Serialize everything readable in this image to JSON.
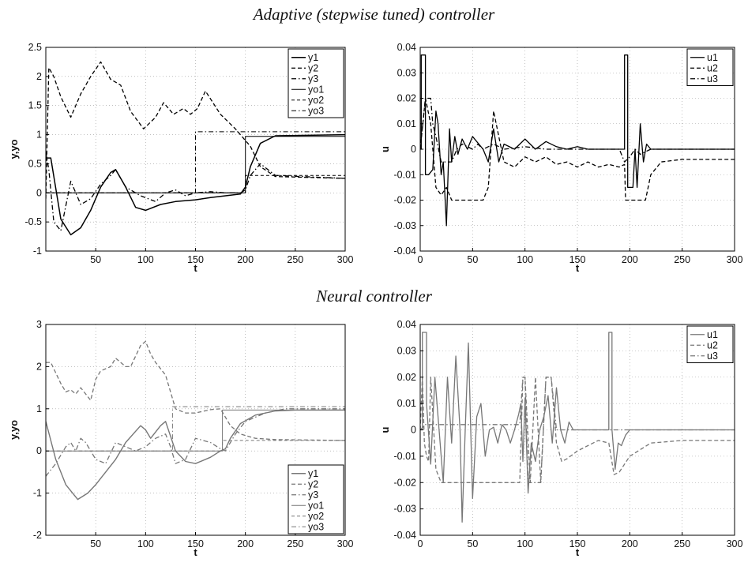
{
  "sections": [
    {
      "title": "Adaptive (stepwise tuned) controller"
    },
    {
      "title": "Neural controller"
    }
  ],
  "chart_data": [
    {
      "type": "line",
      "xlabel": "t",
      "ylabel": "y,yo",
      "xlim": [
        0,
        300
      ],
      "ylim": [
        -1,
        2.5
      ],
      "xticks": [
        50,
        100,
        150,
        200,
        250,
        300
      ],
      "yticks": [
        -1,
        -0.5,
        0,
        0.5,
        1,
        1.5,
        2,
        2.5
      ],
      "grid": true,
      "legend": "top-right",
      "color": "#000000",
      "series": [
        {
          "name": "y1",
          "dash": "",
          "width": 1.5,
          "x": [
            0,
            5,
            15,
            25,
            35,
            45,
            55,
            65,
            70,
            80,
            90,
            100,
            115,
            130,
            150,
            165,
            180,
            195,
            200,
            205,
            215,
            230,
            300
          ],
          "y": [
            0.6,
            0.6,
            -0.45,
            -0.72,
            -0.6,
            -0.3,
            0.1,
            0.35,
            0.4,
            0.1,
            -0.25,
            -0.3,
            -0.2,
            -0.15,
            -0.12,
            -0.08,
            -0.05,
            -0.02,
            0.1,
            0.45,
            0.85,
            0.98,
            1.0
          ]
        },
        {
          "name": "y2",
          "dash": "5,3",
          "width": 1.3,
          "x": [
            0,
            3,
            8,
            15,
            25,
            35,
            45,
            55,
            65,
            75,
            85,
            98,
            110,
            118,
            128,
            138,
            145,
            152,
            160,
            175,
            190,
            205,
            215,
            230,
            300
          ],
          "y": [
            -0.1,
            2.15,
            2.0,
            1.65,
            1.3,
            1.7,
            2.0,
            2.25,
            1.95,
            1.85,
            1.4,
            1.1,
            1.3,
            1.55,
            1.35,
            1.45,
            1.35,
            1.45,
            1.75,
            1.35,
            1.1,
            0.8,
            0.45,
            0.28,
            0.25
          ]
        },
        {
          "name": "y3",
          "dash": "6,3,1.5,3",
          "width": 1.3,
          "x": [
            0,
            3,
            8,
            15,
            25,
            35,
            45,
            55,
            65,
            70,
            80,
            95,
            110,
            120,
            130,
            140,
            150,
            165,
            180,
            195,
            200,
            205,
            215,
            230,
            300
          ],
          "y": [
            0.7,
            0.4,
            -0.5,
            -0.65,
            0.2,
            -0.2,
            -0.1,
            0.15,
            0.3,
            0.4,
            0.1,
            -0.05,
            -0.15,
            0.0,
            0.05,
            -0.05,
            0.0,
            0.02,
            0.0,
            0.0,
            0.05,
            0.3,
            0.5,
            0.3,
            0.25
          ]
        },
        {
          "name": "yo1",
          "dash": "",
          "width": 1.0,
          "x": [
            0,
            200,
            200,
            300
          ],
          "y": [
            0,
            0,
            0.97,
            0.97
          ]
        },
        {
          "name": "yo2",
          "dash": "4,3",
          "width": 1.0,
          "x": [
            0,
            200,
            200,
            300
          ],
          "y": [
            0,
            0,
            0.3,
            0.3
          ]
        },
        {
          "name": "yo3",
          "dash": "6,3,1.5,3",
          "width": 1.0,
          "x": [
            0,
            150,
            150,
            300
          ],
          "y": [
            0,
            0,
            1.05,
            1.05
          ]
        }
      ]
    },
    {
      "type": "line",
      "xlabel": "t",
      "ylabel": "u",
      "xlim": [
        0,
        300
      ],
      "ylim": [
        -0.04,
        0.04
      ],
      "xticks": [
        0,
        50,
        100,
        150,
        200,
        250,
        300
      ],
      "yticks": [
        -0.04,
        -0.03,
        -0.02,
        -0.01,
        0,
        0.01,
        0.02,
        0.03,
        0.04
      ],
      "grid": true,
      "legend": "top-right",
      "color": "#000000",
      "series": [
        {
          "name": "u1",
          "dash": "",
          "width": 1.3,
          "x": [
            0,
            1,
            1,
            5,
            5,
            8,
            12,
            15,
            17,
            20,
            22,
            25,
            28,
            30,
            33,
            36,
            40,
            45,
            50,
            60,
            65,
            70,
            75,
            80,
            90,
            100,
            110,
            120,
            130,
            140,
            150,
            160,
            170,
            180,
            190,
            195,
            195,
            198,
            198,
            203,
            205,
            207,
            210,
            213,
            216,
            220,
            230,
            250,
            300
          ],
          "y": [
            0,
            0,
            0.037,
            0.037,
            -0.01,
            -0.01,
            -0.008,
            0.015,
            0.01,
            -0.01,
            -0.005,
            -0.03,
            0.008,
            -0.005,
            0.005,
            -0.002,
            0.004,
            0.0,
            0.005,
            0.0,
            -0.005,
            0.008,
            -0.005,
            0.002,
            0.0,
            0.004,
            0.0,
            0.003,
            0.001,
            0.0,
            0.001,
            0.0,
            0.0,
            0.0,
            0.0,
            0.0,
            0.037,
            0.037,
            -0.015,
            -0.015,
            0.0,
            -0.015,
            0.01,
            -0.005,
            0.002,
            0.0,
            0.0,
            0.0,
            0.0
          ]
        },
        {
          "name": "u2",
          "dash": "5,3",
          "width": 1.3,
          "x": [
            0,
            5,
            10,
            15,
            20,
            25,
            30,
            40,
            45,
            50,
            60,
            65,
            70,
            75,
            80,
            90,
            100,
            110,
            120,
            130,
            140,
            150,
            160,
            170,
            180,
            190,
            195,
            196,
            200,
            205,
            210,
            215,
            220,
            230,
            250,
            300
          ],
          "y": [
            0,
            0.02,
            0.01,
            -0.015,
            -0.018,
            -0.015,
            -0.02,
            -0.02,
            -0.02,
            -0.02,
            -0.02,
            -0.015,
            0.015,
            0.005,
            -0.005,
            -0.007,
            -0.003,
            -0.005,
            -0.003,
            -0.006,
            -0.005,
            -0.007,
            -0.005,
            -0.007,
            -0.006,
            -0.007,
            -0.006,
            -0.02,
            -0.02,
            -0.02,
            -0.02,
            -0.02,
            -0.01,
            -0.005,
            -0.004,
            -0.004
          ]
        },
        {
          "name": "u3",
          "dash": "6,3,1.5,3",
          "width": 1.3,
          "x": [
            0,
            5,
            10,
            12,
            15,
            20,
            30,
            35,
            40,
            50,
            55,
            60,
            70,
            80,
            100,
            120,
            150,
            170,
            190,
            195,
            200,
            205,
            210,
            220,
            300
          ],
          "y": [
            0,
            0.02,
            0.02,
            0.01,
            0.005,
            -0.005,
            -0.005,
            0.0,
            0.002,
            0.0,
            0.002,
            0.0,
            0.002,
            0.0,
            0.001,
            0.0,
            0.0,
            0.0,
            0.0,
            -0.005,
            -0.003,
            0.0,
            -0.002,
            0.0,
            0.0
          ]
        }
      ]
    },
    {
      "type": "line",
      "xlabel": "t",
      "ylabel": "y,yo",
      "xlim": [
        0,
        300
      ],
      "ylim": [
        -2,
        3
      ],
      "xticks": [
        50,
        100,
        150,
        200,
        250,
        300
      ],
      "yticks": [
        -2,
        -1,
        0,
        1,
        2,
        3
      ],
      "grid": true,
      "legend": "bottom-right",
      "color": "#777777",
      "series": [
        {
          "name": "y1",
          "dash": "",
          "width": 1.4,
          "x": [
            0,
            10,
            20,
            32,
            42,
            50,
            60,
            70,
            80,
            95,
            100,
            105,
            115,
            120,
            130,
            140,
            150,
            165,
            175,
            180,
            185,
            195,
            210,
            230,
            250,
            300
          ],
          "y": [
            0.7,
            -0.2,
            -0.8,
            -1.15,
            -1.0,
            -0.8,
            -0.5,
            -0.2,
            0.2,
            0.6,
            0.5,
            0.3,
            0.6,
            0.7,
            0.0,
            -0.25,
            -0.3,
            -0.15,
            0.0,
            0.05,
            0.3,
            0.65,
            0.85,
            0.95,
            0.97,
            0.97
          ]
        },
        {
          "name": "y2",
          "dash": "5,3",
          "width": 1.3,
          "x": [
            0,
            5,
            15,
            20,
            25,
            30,
            35,
            45,
            50,
            55,
            65,
            70,
            80,
            85,
            95,
            100,
            105,
            110,
            120,
            125,
            130,
            140,
            150,
            165,
            175,
            180,
            185,
            195,
            210,
            230,
            300
          ],
          "y": [
            2.1,
            2.1,
            1.6,
            1.4,
            1.45,
            1.35,
            1.5,
            1.2,
            1.7,
            1.9,
            2.0,
            2.2,
            2.0,
            2.0,
            2.5,
            2.6,
            2.3,
            2.1,
            1.8,
            1.4,
            1.0,
            0.9,
            0.9,
            0.98,
            1.0,
            0.8,
            0.6,
            0.4,
            0.3,
            0.27,
            0.25
          ]
        },
        {
          "name": "y3",
          "dash": "6,3,1.5,3",
          "width": 1.3,
          "x": [
            0,
            10,
            20,
            25,
            30,
            35,
            40,
            50,
            60,
            70,
            80,
            90,
            100,
            110,
            120,
            125,
            130,
            140,
            150,
            165,
            175,
            180,
            190,
            200,
            220,
            240,
            300
          ],
          "y": [
            -0.6,
            -0.3,
            0.1,
            0.2,
            0.0,
            0.3,
            0.2,
            -0.2,
            -0.3,
            0.2,
            0.1,
            0.0,
            0.1,
            0.3,
            0.4,
            0.1,
            -0.3,
            -0.2,
            0.3,
            0.2,
            0.05,
            0.0,
            0.4,
            0.7,
            0.9,
            1.0,
            1.0
          ]
        },
        {
          "name": "yo1",
          "dash": "",
          "width": 1.0,
          "x": [
            0,
            177,
            177,
            300
          ],
          "y": [
            0,
            0,
            0.97,
            0.97
          ]
        },
        {
          "name": "yo2",
          "dash": "4,3",
          "width": 1.0,
          "x": [
            0,
            177,
            177,
            300
          ],
          "y": [
            0,
            0,
            0.25,
            0.25
          ]
        },
        {
          "name": "yo3",
          "dash": "6,3,1.5,3",
          "width": 1.0,
          "x": [
            0,
            127,
            127,
            300
          ],
          "y": [
            0,
            0,
            1.05,
            1.05
          ]
        }
      ]
    },
    {
      "type": "line",
      "xlabel": "t",
      "ylabel": "u",
      "xlim": [
        0,
        300
      ],
      "ylim": [
        -0.04,
        0.04
      ],
      "xticks": [
        0,
        50,
        100,
        150,
        200,
        250,
        300
      ],
      "yticks": [
        -0.04,
        -0.03,
        -0.02,
        -0.01,
        0,
        0.01,
        0.02,
        0.03,
        0.04
      ],
      "grid": true,
      "legend": "top-right",
      "color": "#777777",
      "series": [
        {
          "name": "u1",
          "dash": "",
          "width": 1.3,
          "x": [
            0,
            2,
            2,
            6,
            6,
            10,
            14,
            18,
            22,
            26,
            30,
            34,
            38,
            40,
            43,
            46,
            50,
            54,
            58,
            62,
            66,
            70,
            74,
            78,
            82,
            86,
            90,
            94,
            96,
            98,
            100,
            103,
            106,
            110,
            114,
            118,
            122,
            126,
            130,
            134,
            138,
            142,
            146,
            150,
            160,
            170,
            178,
            180,
            180,
            183,
            183,
            186,
            189,
            192,
            196,
            200,
            205,
            210,
            220,
            300
          ],
          "y": [
            0,
            0,
            0.037,
            0.037,
            0.01,
            -0.013,
            0.02,
            0.0,
            -0.02,
            0.02,
            -0.005,
            0.028,
            0.0,
            -0.035,
            0.0,
            0.033,
            -0.026,
            0.005,
            0.01,
            -0.01,
            0.0,
            0.001,
            -0.005,
            0.002,
            0.0,
            -0.005,
            0.0,
            0.006,
            0.01,
            -0.012,
            0.012,
            -0.024,
            -0.005,
            -0.012,
            0.0,
            0.005,
            0.013,
            -0.005,
            0.016,
            0.0,
            -0.005,
            0.003,
            0.0,
            0.0,
            0.0,
            0.0,
            0.0,
            0.0,
            0.037,
            0.037,
            0.0,
            -0.015,
            -0.005,
            -0.006,
            -0.002,
            0.0,
            0.0,
            0.0,
            0.0,
            0.0
          ]
        },
        {
          "name": "u2",
          "dash": "5,3",
          "width": 1.3,
          "x": [
            0,
            2,
            4,
            6,
            8,
            10,
            15,
            20,
            25,
            30,
            35,
            40,
            45,
            50,
            55,
            60,
            70,
            80,
            90,
            95,
            98,
            100,
            105,
            110,
            115,
            120,
            125,
            130,
            135,
            140,
            150,
            160,
            170,
            180,
            185,
            190,
            200,
            220,
            250,
            300
          ],
          "y": [
            0.0,
            0.02,
            -0.005,
            -0.01,
            -0.012,
            0.02,
            -0.015,
            -0.02,
            -0.02,
            -0.02,
            -0.02,
            -0.02,
            -0.02,
            -0.02,
            -0.02,
            -0.02,
            -0.02,
            -0.02,
            -0.02,
            -0.02,
            0.02,
            0.02,
            -0.02,
            0.02,
            -0.02,
            0.02,
            0.02,
            -0.005,
            -0.012,
            -0.011,
            -0.008,
            -0.006,
            -0.004,
            -0.005,
            -0.017,
            -0.016,
            -0.01,
            -0.005,
            -0.004,
            -0.004
          ]
        },
        {
          "name": "u3",
          "dash": "6,3,1.5,3",
          "width": 1.3,
          "x": [
            0,
            5,
            10,
            15,
            20,
            25,
            30,
            40,
            50,
            60,
            70,
            80,
            90,
            95,
            98,
            100,
            103,
            106,
            110,
            115,
            120,
            125,
            130,
            140,
            150,
            300
          ],
          "y": [
            0.0,
            0.002,
            0.002,
            0.002,
            0.002,
            0.002,
            0.002,
            0.002,
            0.002,
            0.002,
            0.002,
            0.002,
            0.002,
            0.002,
            0.02,
            0.02,
            -0.02,
            -0.02,
            -0.02,
            -0.02,
            0.02,
            0.02,
            0.0,
            0.0,
            0.0,
            0.0
          ]
        }
      ]
    }
  ]
}
